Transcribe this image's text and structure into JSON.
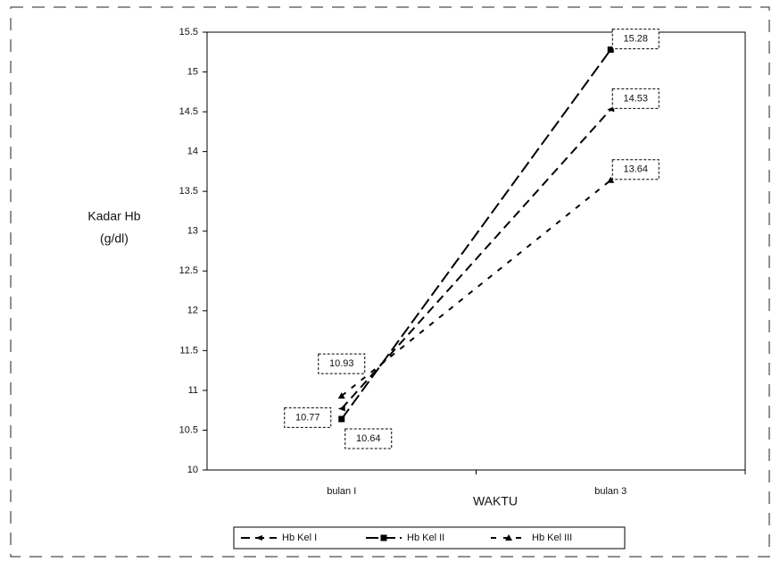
{
  "chart_data": {
    "type": "line",
    "x_label": "WAKTU",
    "y_label": [
      "Kadar Hb",
      "(g/dl)"
    ],
    "categories": [
      "bulan I",
      "bulan 3"
    ],
    "series": [
      {
        "name": "Hb Kel I",
        "color": "#000000",
        "values": [
          10.77,
          14.53
        ]
      },
      {
        "name": "Hb Kel II",
        "color": "#000000",
        "values": [
          10.64,
          15.28
        ]
      },
      {
        "name": "Hb Kel III",
        "color": "#000000",
        "values": [
          10.93,
          13.64
        ]
      }
    ],
    "ylim": [
      10,
      15.5
    ],
    "yticks": [
      10,
      10.5,
      11,
      11.5,
      12,
      12.5,
      13,
      13.5,
      14,
      14.5,
      15,
      15.5
    ],
    "legend": "bottom"
  }
}
